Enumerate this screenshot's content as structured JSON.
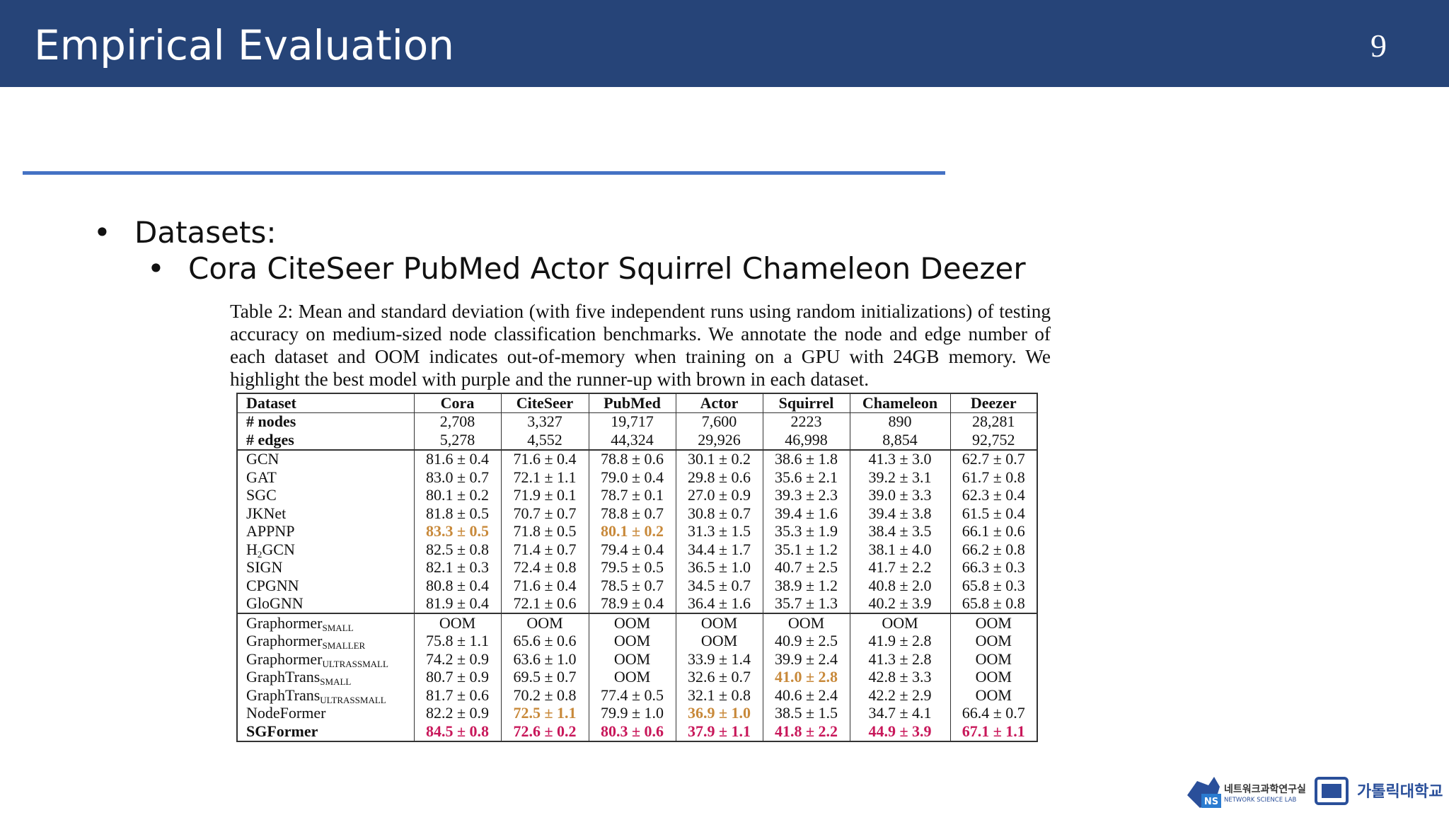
{
  "header": {
    "title": "Empirical Evaluation",
    "page_number": "9"
  },
  "bullets": [
    {
      "text": "Datasets:",
      "sub": [
        "Cora CiteSeer PubMed Actor Squirrel Chameleon Deezer"
      ]
    }
  ],
  "table": {
    "caption": "Table 2: Mean and standard deviation (with five independent runs using random initializations) of testing accuracy on medium-sized node classification benchmarks. We annotate the node and edge number of each dataset and OOM indicates out-of-memory when training on a GPU with 24GB memory. We highlight the best model with purple and the runner-up with brown in each dataset.",
    "header": [
      "Dataset",
      "Cora",
      "CiteSeer",
      "PubMed",
      "Actor",
      "Squirrel",
      "Chameleon",
      "Deezer"
    ],
    "stats": [
      {
        "label": "# nodes",
        "cells": [
          "2,708",
          "3,327",
          "19,717",
          "7,600",
          "2223",
          "890",
          "28,281"
        ]
      },
      {
        "label": "# edges",
        "cells": [
          "5,278",
          "4,552",
          "44,324",
          "29,926",
          "46,998",
          "8,854",
          "92,752"
        ]
      }
    ],
    "groups": [
      [
        {
          "model": {
            "name": "GCN"
          },
          "cells": [
            "81.6 ± 0.4",
            "71.6 ± 0.4",
            "78.8 ± 0.6",
            "30.1 ± 0.2",
            "38.6 ± 1.8",
            "41.3 ± 3.0",
            "62.7 ± 0.7"
          ]
        },
        {
          "model": {
            "name": "GAT"
          },
          "cells": [
            "83.0 ± 0.7",
            "72.1 ± 1.1",
            "79.0 ± 0.4",
            "29.8 ± 0.6",
            "35.6 ± 2.1",
            "39.2 ± 3.1",
            "61.7 ± 0.8"
          ]
        },
        {
          "model": {
            "name": "SGC"
          },
          "cells": [
            "80.1 ± 0.2",
            "71.9 ± 0.1",
            "78.7 ± 0.1",
            "27.0 ± 0.9",
            "39.3 ± 2.3",
            "39.0 ± 3.3",
            "62.3 ± 0.4"
          ]
        },
        {
          "model": {
            "name": "JKNet"
          },
          "cells": [
            "81.8 ± 0.5",
            "70.7 ± 0.7",
            "78.8 ± 0.7",
            "30.8 ± 0.7",
            "39.4 ± 1.6",
            "39.4 ± 3.8",
            "61.5 ± 0.4"
          ]
        },
        {
          "model": {
            "name": "APPNP"
          },
          "cells": [
            {
              "text": "83.3 ± 0.5",
              "color": "#c8893a"
            },
            "71.8 ± 0.5",
            {
              "text": "80.1 ± 0.2",
              "color": "#c8893a"
            },
            "31.3 ± 1.5",
            "35.3 ± 1.9",
            "38.4 ± 3.5",
            "66.1 ± 0.6"
          ]
        },
        {
          "model": {
            "name": "H",
            "sub": "2",
            "rest": "GCN"
          },
          "cells": [
            "82.5 ± 0.8",
            "71.4 ± 0.7",
            "79.4 ± 0.4",
            "34.4 ± 1.7",
            "35.1 ± 1.2",
            "38.1 ± 4.0",
            "66.2 ± 0.8"
          ]
        },
        {
          "model": {
            "name": "SIGN"
          },
          "cells": [
            "82.1 ± 0.3",
            "72.4 ± 0.8",
            "79.5 ± 0.5",
            "36.5 ± 1.0",
            "40.7 ± 2.5",
            "41.7 ± 2.2",
            "66.3 ± 0.3"
          ]
        },
        {
          "model": {
            "name": "CPGNN"
          },
          "cells": [
            "80.8 ± 0.4",
            "71.6 ± 0.4",
            "78.5 ± 0.7",
            "34.5 ± 0.7",
            "38.9 ± 1.2",
            "40.8 ± 2.0",
            "65.8 ± 0.3"
          ]
        },
        {
          "model": {
            "name": "GloGNN"
          },
          "cells": [
            "81.9 ± 0.4",
            "72.1 ± 0.6",
            "78.9 ± 0.4",
            "36.4 ± 1.6",
            "35.7 ± 1.3",
            "40.2 ± 3.9",
            "65.8 ± 0.8"
          ]
        }
      ],
      [
        {
          "model": {
            "name": "Graphormer",
            "sub": "SMALL"
          },
          "cells": [
            "OOM",
            "OOM",
            "OOM",
            "OOM",
            "OOM",
            "OOM",
            "OOM"
          ]
        },
        {
          "model": {
            "name": "Graphormer",
            "sub": "SMALLER"
          },
          "cells": [
            "75.8 ± 1.1",
            "65.6 ± 0.6",
            "OOM",
            "OOM",
            "40.9 ± 2.5",
            "41.9 ± 2.8",
            "OOM"
          ]
        },
        {
          "model": {
            "name": "Graphormer",
            "sub": "ULTRASSMALL"
          },
          "cells": [
            "74.2 ± 0.9",
            "63.6 ± 1.0",
            "OOM",
            "33.9 ± 1.4",
            "39.9 ± 2.4",
            "41.3 ± 2.8",
            "OOM"
          ]
        },
        {
          "model": {
            "name": "GraphTrans",
            "sub": "SMALL"
          },
          "cells": [
            "80.7 ± 0.9",
            "69.5 ± 0.7",
            "OOM",
            "32.6 ± 0.7",
            {
              "text": "41.0 ± 2.8",
              "color": "#c8893a"
            },
            "42.8 ± 3.3",
            "OOM"
          ]
        },
        {
          "model": {
            "name": "GraphTrans",
            "sub": "ULTRASSMALL"
          },
          "cells": [
            "81.7 ± 0.6",
            "70.2 ± 0.8",
            "77.4 ± 0.5",
            "32.1 ± 0.8",
            "40.6 ± 2.4",
            "42.2 ± 2.9",
            "OOM"
          ]
        },
        {
          "model": {
            "name": "NodeFormer"
          },
          "cells": [
            "82.2 ± 0.9",
            {
              "text": "72.5 ± 1.1",
              "color": "#c8893a"
            },
            "79.9 ± 1.0",
            {
              "text": "36.9 ± 1.0",
              "color": "#c8893a"
            },
            "38.5 ± 1.5",
            "34.7 ± 4.1",
            "66.4 ± 0.7"
          ]
        },
        {
          "model": {
            "name": "SGFormer"
          },
          "bold": true,
          "cells": [
            {
              "text": "84.5 ± 0.8",
              "color": "#c8175a"
            },
            {
              "text": "72.6 ± 0.2",
              "color": "#c8175a"
            },
            {
              "text": "80.3 ± 0.6",
              "color": "#c8175a"
            },
            {
              "text": "37.9 ± 1.1",
              "color": "#c8175a"
            },
            {
              "text": "41.8 ± 2.2",
              "color": "#c8175a"
            },
            {
              "text": "44.9 ± 3.9",
              "color": "#c8175a"
            },
            {
              "text": "67.1 ± 1.1",
              "color": "#c8175a"
            }
          ]
        }
      ]
    ]
  },
  "logos": {
    "lab_korean": "네트워크과학연구실",
    "lab_english": "NETWORK SCIENCE LAB",
    "lab_mark": "NS",
    "university": "가톨릭대학교"
  }
}
